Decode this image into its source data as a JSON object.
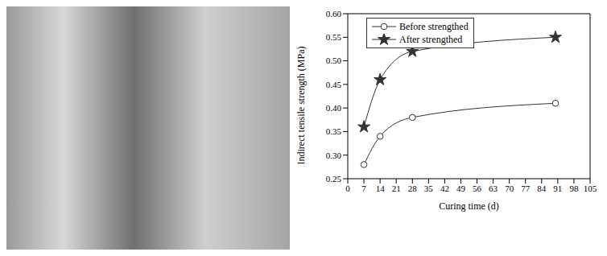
{
  "chart_data": {
    "type": "line",
    "x": [
      7,
      14,
      28,
      90
    ],
    "xlabel": "Curing time (d)",
    "ylabel": "Indirect tensile strength (MPa)",
    "xlim": [
      0,
      105
    ],
    "xticks": [
      0,
      7,
      14,
      21,
      28,
      35,
      42,
      49,
      56,
      63,
      70,
      77,
      84,
      91,
      98,
      105
    ],
    "ylim": [
      0.25,
      0.6
    ],
    "yticks": [
      0.25,
      {
        "value": 0.3,
        "label": "0.30"
      },
      0.35,
      {
        "value": 0.4,
        "label": "0.40"
      },
      0.45,
      {
        "value": 0.5,
        "label": "0.50"
      },
      0.55,
      {
        "value": 0.6,
        "label": "0.60"
      }
    ],
    "grid": false,
    "legend": "upper left",
    "series": [
      {
        "name": "Before strengthed",
        "color": "#333333",
        "marker": "circle",
        "line_style": "solid",
        "values": [
          0.28,
          0.34,
          0.38,
          0.41
        ]
      },
      {
        "name": "After strengthed",
        "color": "#333333",
        "marker": "star",
        "line_style": "solid",
        "values": [
          0.36,
          0.46,
          0.52,
          0.55
        ]
      }
    ]
  }
}
